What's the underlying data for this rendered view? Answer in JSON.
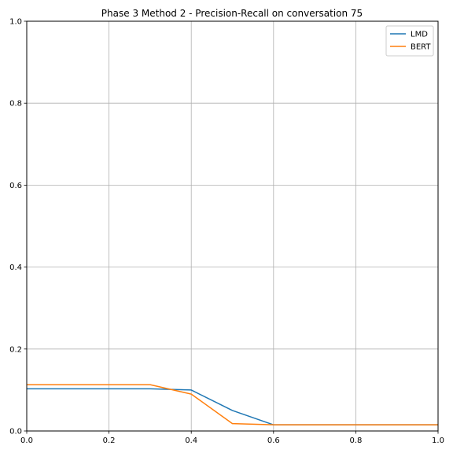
{
  "chart_data": {
    "type": "line",
    "title": "Phase 3 Method 2 - Precision-Recall on conversation 75",
    "xlabel": "",
    "ylabel": "",
    "xlim": [
      0,
      1
    ],
    "ylim": [
      0,
      1
    ],
    "xticks": [
      0.0,
      0.2,
      0.4,
      0.6,
      0.8,
      1.0
    ],
    "xtick_labels": [
      "0.0",
      "0.2",
      "0.4",
      "0.6",
      "0.8",
      "1.0"
    ],
    "yticks": [
      0.0,
      0.2,
      0.4,
      0.6,
      0.8,
      1.0
    ],
    "ytick_labels": [
      "0.0",
      "0.2",
      "0.4",
      "0.6",
      "0.8",
      "1.0"
    ],
    "grid": true,
    "legend_position": "top-right",
    "series": [
      {
        "name": "LMD",
        "color": "#1f77b4",
        "x": [
          0.0,
          0.1,
          0.2,
          0.3,
          0.4,
          0.5,
          0.6,
          0.7,
          0.8,
          0.9,
          1.0
        ],
        "y": [
          0.103,
          0.103,
          0.103,
          0.103,
          0.1,
          0.05,
          0.015,
          0.015,
          0.015,
          0.015,
          0.015
        ]
      },
      {
        "name": "BERT",
        "color": "#ff7f0e",
        "x": [
          0.0,
          0.1,
          0.2,
          0.3,
          0.4,
          0.5,
          0.6,
          0.7,
          0.8,
          0.9,
          1.0
        ],
        "y": [
          0.113,
          0.113,
          0.113,
          0.113,
          0.09,
          0.018,
          0.015,
          0.015,
          0.015,
          0.015,
          0.015
        ]
      }
    ]
  }
}
